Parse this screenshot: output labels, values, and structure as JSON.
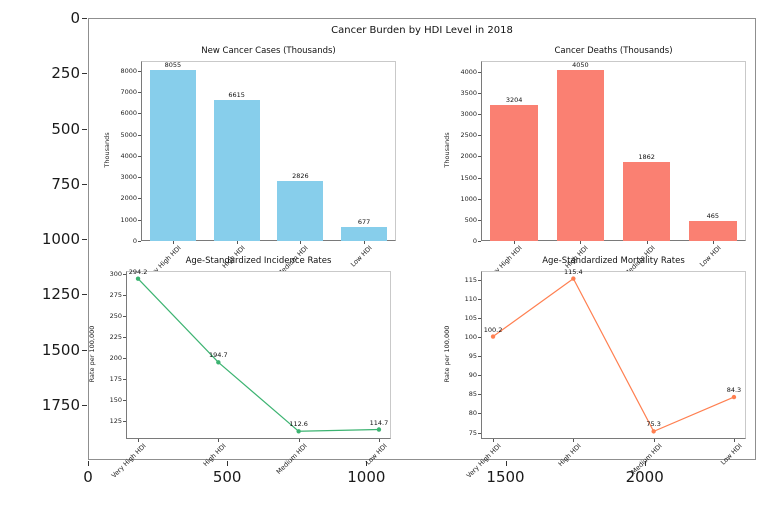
{
  "outer_axes": {
    "y_ticks": [
      0,
      250,
      500,
      750,
      1000,
      1250,
      1500,
      1750
    ],
    "x_ticks": [
      0,
      500,
      1000,
      1500,
      2000
    ]
  },
  "figure": {
    "suptitle": "Cancer Burden by HDI Level in 2018"
  },
  "chart_data": [
    {
      "type": "bar",
      "title": "New Cancer Cases (Thousands)",
      "ylabel": "Thousands",
      "categories": [
        "Very High HDI",
        "High HDI",
        "Medium HDI",
        "Low HDI"
      ],
      "values": [
        8055,
        6615,
        2826,
        677
      ],
      "yticks": [
        0,
        1000,
        2000,
        3000,
        4000,
        5000,
        6000,
        7000,
        8000
      ],
      "ylim": [
        0,
        8460
      ],
      "color": "#87ceeb",
      "legend": "none",
      "grid": false
    },
    {
      "type": "bar",
      "title": "Cancer Deaths (Thousands)",
      "ylabel": "Thousands",
      "categories": [
        "Very High HDI",
        "High HDI",
        "Medium HDI",
        "Low HDI"
      ],
      "values": [
        3204,
        4050,
        1862,
        465
      ],
      "yticks": [
        0,
        500,
        1000,
        1500,
        2000,
        2500,
        3000,
        3500,
        4000
      ],
      "ylim": [
        0,
        4255
      ],
      "color": "#fa8072",
      "legend": "none",
      "grid": false
    },
    {
      "type": "line",
      "title": "Age-Standardized Incidence Rates",
      "ylabel": "Rate per 100,000",
      "categories": [
        "Very High HDI",
        "High HDI",
        "Medium HDI",
        "Low HDI"
      ],
      "values": [
        294.2,
        194.7,
        112.6,
        114.7
      ],
      "yticks": [
        125,
        150,
        175,
        200,
        225,
        250,
        275,
        300
      ],
      "ylim": [
        103.4,
        303.4
      ],
      "color": "#3cb371",
      "legend": "none",
      "grid": false
    },
    {
      "type": "line",
      "title": "Age-Standardized Mortality Rates",
      "ylabel": "Rate per 100,000",
      "categories": [
        "Very High HDI",
        "High HDI",
        "Medium HDI",
        "Low HDI"
      ],
      "values": [
        100.2,
        115.4,
        75.3,
        84.3
      ],
      "yticks": [
        75,
        80,
        85,
        90,
        95,
        100,
        105,
        110,
        115
      ],
      "ylim": [
        73.3,
        117.4
      ],
      "color": "#ff7f50",
      "legend": "none",
      "grid": false
    }
  ]
}
